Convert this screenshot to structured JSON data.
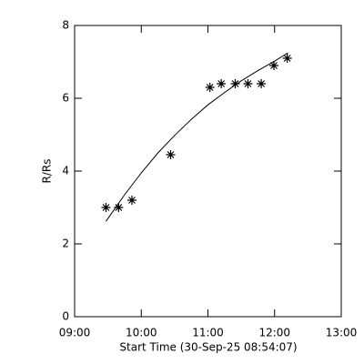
{
  "chart_data": {
    "type": "scatter",
    "x_label": "Start Time (30-Sep-25 08:54:07)",
    "y_label": "R/Rs",
    "series": [
      {
        "style": "star",
        "color": "#000000",
        "x": [
          9.47,
          9.66,
          9.86,
          10.44,
          11.03,
          11.2,
          11.41,
          11.6,
          11.8,
          11.99,
          12.19
        ],
        "values": [
          3.0,
          3.0,
          3.2,
          4.45,
          6.3,
          6.4,
          6.4,
          6.4,
          6.4,
          6.9,
          7.1
        ]
      },
      {
        "style": "line",
        "color": "#000000",
        "x": [
          9.47,
          9.75,
          10.0,
          10.25,
          10.5,
          10.75,
          11.0,
          11.25,
          11.5,
          11.75,
          12.0,
          12.2
        ],
        "values": [
          2.62,
          3.35,
          3.95,
          4.5,
          4.98,
          5.42,
          5.82,
          6.16,
          6.48,
          6.76,
          7.02,
          7.25
        ]
      }
    ],
    "xlim": [
      9,
      13
    ],
    "xticks": [
      {
        "value": 9,
        "label": "09:00"
      },
      {
        "value": 10,
        "label": "10:00"
      },
      {
        "value": 11,
        "label": "11:00"
      },
      {
        "value": 12,
        "label": "12:00"
      },
      {
        "value": 13,
        "label": "13:00"
      }
    ],
    "ylim": [
      0,
      8
    ],
    "yticks": [
      0,
      2,
      4,
      6,
      8
    ]
  }
}
